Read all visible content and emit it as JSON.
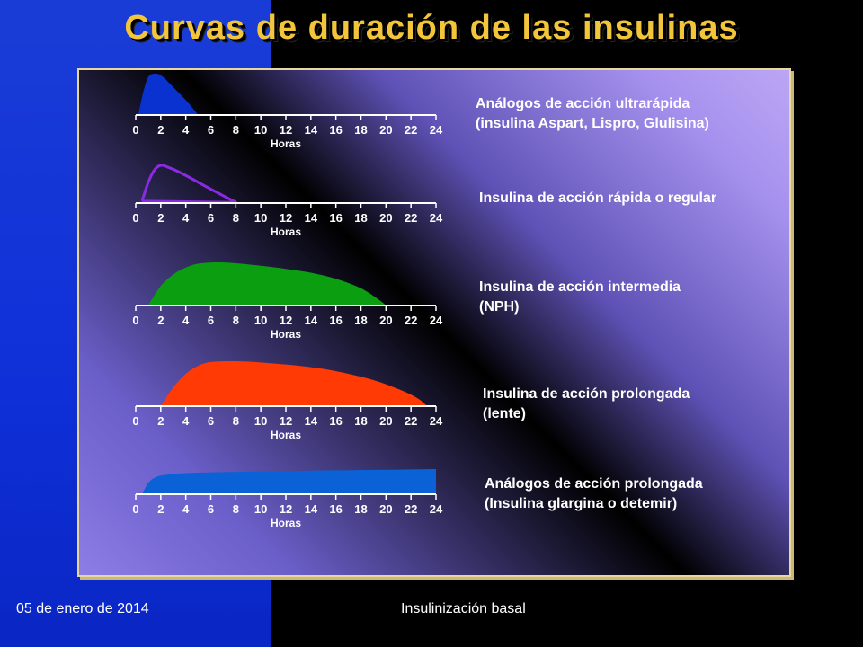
{
  "title": "Curvas de duración de las insulinas",
  "footer": {
    "date": "05 de enero de 2014",
    "title": "Insulinización basal"
  },
  "colors": {
    "title": "#f2c53a",
    "ultrarapida": "#0a32d0",
    "rapida": "#8a2be2",
    "intermedia": "#0a9e10",
    "prolongada": "#ff3a05",
    "analogos_prolongada": "#0b62d6"
  },
  "chart_data": [
    {
      "type": "area",
      "label": "Análogos de acción ultrarápida\n(insulina Aspart, Lispro, Glulisina)",
      "xlabel": "Horas",
      "xticks": [
        0,
        2,
        4,
        6,
        8,
        10,
        12,
        14,
        16,
        18,
        20,
        22,
        24
      ],
      "xlim": [
        0,
        24
      ],
      "ylim": [
        0,
        1
      ],
      "style": "filled",
      "color": "#0a32d0",
      "x": [
        0.2,
        0.6,
        1.0,
        1.5,
        2.0,
        2.6,
        3.3,
        4.0,
        4.6,
        5.0
      ],
      "y": [
        0.0,
        0.55,
        0.92,
        1.0,
        0.96,
        0.8,
        0.58,
        0.36,
        0.15,
        0.0
      ]
    },
    {
      "type": "line",
      "label": "Insulina de acción rápida o regular",
      "xlabel": "Horas",
      "xticks": [
        0,
        2,
        4,
        6,
        8,
        10,
        12,
        14,
        16,
        18,
        20,
        22,
        24
      ],
      "xlim": [
        0,
        24
      ],
      "ylim": [
        0,
        1
      ],
      "style": "outline",
      "color": "#8a2be2",
      "x": [
        0.5,
        1.0,
        1.5,
        2.0,
        2.5,
        3.5,
        5.0,
        6.5,
        8.0,
        0.5
      ],
      "y": [
        0.05,
        0.55,
        0.88,
        1.0,
        0.96,
        0.82,
        0.55,
        0.28,
        0.02,
        0.05
      ]
    },
    {
      "type": "area",
      "label": "Insulina de acción intermedia\n(NPH)",
      "xlabel": "Horas",
      "xticks": [
        0,
        2,
        4,
        6,
        8,
        10,
        12,
        14,
        16,
        18,
        20,
        22,
        24
      ],
      "xlim": [
        0,
        24
      ],
      "ylim": [
        0,
        1
      ],
      "style": "filled",
      "color": "#0a9e10",
      "x": [
        1.0,
        2.0,
        3.0,
        4.0,
        5.0,
        6.5,
        8.0,
        10.0,
        12.0,
        14.0,
        16.0,
        18.0,
        19.5,
        20.0
      ],
      "y": [
        0.0,
        0.45,
        0.72,
        0.88,
        0.97,
        1.0,
        0.98,
        0.92,
        0.85,
        0.76,
        0.62,
        0.4,
        0.12,
        0.0
      ]
    },
    {
      "type": "area",
      "label": "Insulina de acción prolongada\n(lente)",
      "xlabel": "Horas",
      "xticks": [
        0,
        2,
        4,
        6,
        8,
        10,
        12,
        14,
        16,
        18,
        20,
        22,
        24
      ],
      "xlim": [
        0,
        24
      ],
      "ylim": [
        0,
        1
      ],
      "style": "filled",
      "color": "#ff3a05",
      "x": [
        2.0,
        3.0,
        4.0,
        5.0,
        6.0,
        7.5,
        9.0,
        11.0,
        13.0,
        15.0,
        17.0,
        19.0,
        21.0,
        22.5,
        23.3
      ],
      "y": [
        0.0,
        0.42,
        0.72,
        0.9,
        0.98,
        1.0,
        0.99,
        0.95,
        0.9,
        0.83,
        0.72,
        0.58,
        0.38,
        0.18,
        0.0
      ]
    },
    {
      "type": "area",
      "label": "Análogos de acción prolongada\n(Insulina glargina o detemir)",
      "xlabel": "Horas",
      "xticks": [
        0,
        2,
        4,
        6,
        8,
        10,
        12,
        14,
        16,
        18,
        20,
        22,
        24
      ],
      "xlim": [
        0,
        24
      ],
      "ylim": [
        0,
        1
      ],
      "style": "filled",
      "color": "#0b62d6",
      "x": [
        0.5,
        1.0,
        1.6,
        2.5,
        4.0,
        6.0,
        8.0,
        12.0,
        16.0,
        20.0,
        24.0
      ],
      "y": [
        0.0,
        0.45,
        0.68,
        0.78,
        0.84,
        0.87,
        0.89,
        0.92,
        0.95,
        0.97,
        1.0
      ]
    }
  ]
}
